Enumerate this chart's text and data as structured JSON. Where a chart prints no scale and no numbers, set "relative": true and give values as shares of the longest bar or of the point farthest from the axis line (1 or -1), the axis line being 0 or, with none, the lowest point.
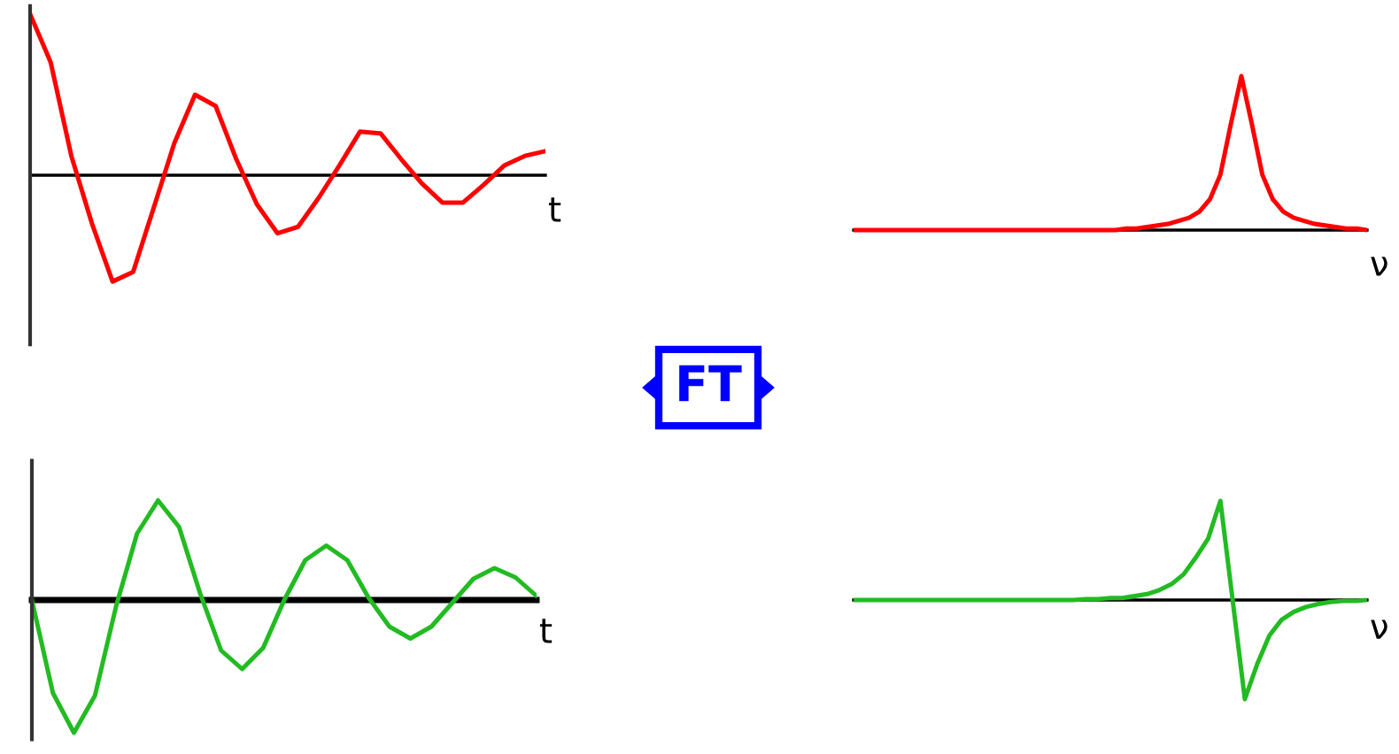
{
  "chart_data": [
    {
      "type": "line",
      "relative": true,
      "xlabel": "t",
      "categories": [
        null,
        null,
        null,
        null,
        null,
        null,
        null,
        null,
        null,
        null,
        null,
        null,
        null,
        null,
        null,
        null,
        null,
        null,
        null,
        null,
        null,
        null,
        null,
        null,
        null,
        null
      ],
      "series": [
        {
          "color": "#ff0000",
          "values": [
            1.0,
            0.7,
            0.12,
            -0.3,
            -0.66,
            -0.6,
            -0.2,
            0.2,
            0.5,
            0.43,
            0.1,
            -0.18,
            -0.36,
            -0.32,
            -0.14,
            0.06,
            0.27,
            0.26,
            0.1,
            -0.05,
            -0.17,
            -0.17,
            -0.06,
            0.06,
            0.12,
            0.15
          ]
        }
      ]
    },
    {
      "type": "other",
      "color": "#0000ff",
      "annotations": [
        "FT"
      ]
    },
    {
      "type": "line",
      "relative": true,
      "xlabel": "ν",
      "categories": [
        null,
        null,
        null,
        null,
        null,
        null,
        null,
        null,
        null,
        null,
        null,
        null,
        null,
        null,
        null,
        null,
        null,
        null,
        null,
        null,
        null,
        null,
        null,
        null,
        null,
        null,
        null,
        null,
        null,
        null,
        null,
        null,
        null,
        null,
        null,
        null,
        null,
        null,
        null,
        null,
        null,
        null,
        null,
        null,
        null,
        null,
        null,
        null,
        null,
        null
      ],
      "series": [
        {
          "color": "#ff0000",
          "values": [
            0,
            0,
            0,
            0,
            0,
            0,
            0,
            0,
            0,
            0,
            0,
            0,
            0,
            0,
            0,
            0,
            0,
            0,
            0,
            0,
            0,
            0,
            0,
            0,
            0,
            0,
            0.01,
            0.01,
            0.02,
            0.03,
            0.04,
            0.06,
            0.08,
            0.12,
            0.2,
            0.36,
            0.69,
            1,
            0.69,
            0.36,
            0.2,
            0.12,
            0.08,
            0.06,
            0.04,
            0.03,
            0.02,
            0.01,
            0.01,
            0
          ]
        }
      ]
    },
    {
      "type": "line",
      "relative": true,
      "xlabel": "t",
      "categories": [
        null,
        null,
        null,
        null,
        null,
        null,
        null,
        null,
        null,
        null,
        null,
        null,
        null,
        null,
        null,
        null,
        null,
        null,
        null,
        null,
        null,
        null,
        null,
        null,
        null
      ],
      "series": [
        {
          "color": "#22bb22",
          "values": [
            0,
            -0.7,
            -1.0,
            -0.72,
            -0.05,
            0.5,
            0.75,
            0.55,
            0.05,
            -0.38,
            -0.52,
            -0.36,
            0.0,
            0.3,
            0.41,
            0.3,
            0.02,
            -0.2,
            -0.29,
            -0.2,
            -0.02,
            0.16,
            0.24,
            0.17,
            0.03
          ]
        }
      ]
    },
    {
      "type": "line",
      "relative": true,
      "xlabel": "ν",
      "categories": [
        null,
        null,
        null,
        null,
        null,
        null,
        null,
        null,
        null,
        null,
        null,
        null,
        null,
        null,
        null,
        null,
        null,
        null,
        null,
        null,
        null,
        null,
        null,
        null,
        null,
        null,
        null,
        null,
        null,
        null,
        null,
        null,
        null,
        null,
        null,
        null,
        null,
        null,
        null,
        null,
        null,
        null,
        null
      ],
      "series": [
        {
          "color": "#22bb22",
          "values": [
            0,
            0,
            0,
            0,
            0,
            0,
            0,
            0,
            0,
            0,
            0,
            0,
            0,
            0,
            0,
            0,
            0,
            0,
            0,
            0.01,
            0.01,
            0.02,
            0.02,
            0.04,
            0.06,
            0.1,
            0.16,
            0.26,
            0.43,
            0.62,
            1.0,
            0,
            -1.0,
            -0.65,
            -0.36,
            -0.2,
            -0.12,
            -0.07,
            -0.04,
            -0.02,
            -0.01,
            -0.01,
            0
          ]
        }
      ]
    }
  ]
}
